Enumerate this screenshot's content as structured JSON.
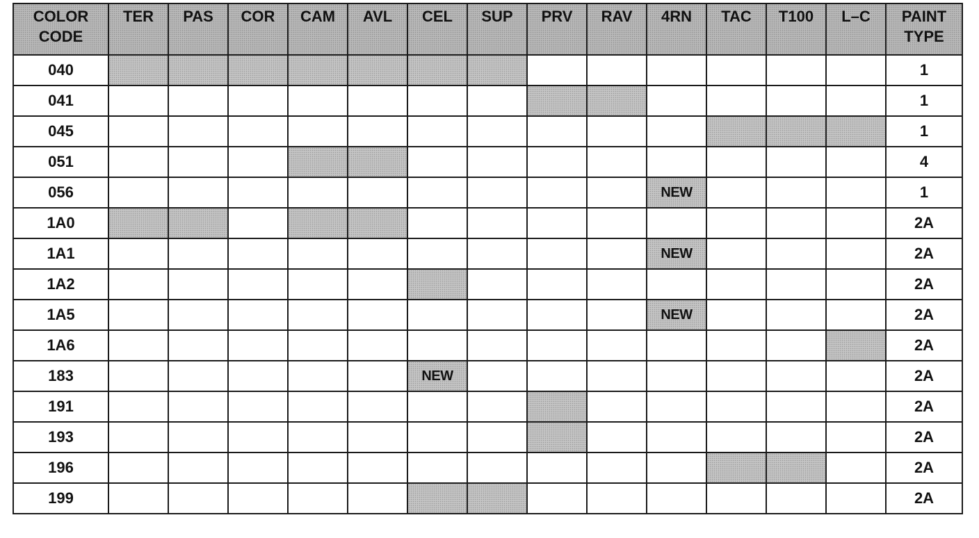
{
  "header": {
    "color_code": [
      "COLOR",
      "CODE"
    ],
    "columns": [
      "TER",
      "PAS",
      "COR",
      "CAM",
      "AVL",
      "CEL",
      "SUP",
      "PRV",
      "RAV",
      "4RN",
      "TAC",
      "T100",
      "L–C"
    ],
    "paint_type": [
      "PAINT",
      "TYPE"
    ]
  },
  "rows": [
    {
      "code": "040",
      "cells": [
        "",
        "",
        "",
        "",
        "",
        "",
        "",
        "",
        "",
        "",
        "",
        "",
        ""
      ],
      "shaded": [
        0,
        1,
        2,
        3,
        4,
        5,
        6
      ],
      "paint_type": "1"
    },
    {
      "code": "041",
      "cells": [
        "",
        "",
        "",
        "",
        "",
        "",
        "",
        "",
        "",
        "",
        "",
        "",
        ""
      ],
      "shaded": [
        7,
        8
      ],
      "paint_type": "1"
    },
    {
      "code": "045",
      "cells": [
        "",
        "",
        "",
        "",
        "",
        "",
        "",
        "",
        "",
        "",
        "",
        "",
        ""
      ],
      "shaded": [
        10,
        11,
        12
      ],
      "paint_type": "1"
    },
    {
      "code": "051",
      "cells": [
        "",
        "",
        "",
        "",
        "",
        "",
        "",
        "",
        "",
        "",
        "",
        "",
        ""
      ],
      "shaded": [
        3,
        4
      ],
      "paint_type": "4"
    },
    {
      "code": "056",
      "cells": [
        "",
        "",
        "",
        "",
        "",
        "",
        "",
        "",
        "",
        "NEW",
        "",
        "",
        ""
      ],
      "shaded": [
        9
      ],
      "paint_type": "1"
    },
    {
      "code": "1A0",
      "cells": [
        "",
        "",
        "",
        "",
        "",
        "",
        "",
        "",
        "",
        "",
        "",
        "",
        ""
      ],
      "shaded": [
        0,
        1,
        3,
        4
      ],
      "paint_type": "2A"
    },
    {
      "code": "1A1",
      "cells": [
        "",
        "",
        "",
        "",
        "",
        "",
        "",
        "",
        "",
        "NEW",
        "",
        "",
        ""
      ],
      "shaded": [
        9
      ],
      "paint_type": "2A"
    },
    {
      "code": "1A2",
      "cells": [
        "",
        "",
        "",
        "",
        "",
        "",
        "",
        "",
        "",
        "",
        "",
        "",
        ""
      ],
      "shaded": [
        5
      ],
      "paint_type": "2A"
    },
    {
      "code": "1A5",
      "cells": [
        "",
        "",
        "",
        "",
        "",
        "",
        "",
        "",
        "",
        "NEW",
        "",
        "",
        ""
      ],
      "shaded": [
        9
      ],
      "paint_type": "2A"
    },
    {
      "code": "1A6",
      "cells": [
        "",
        "",
        "",
        "",
        "",
        "",
        "",
        "",
        "",
        "",
        "",
        "",
        ""
      ],
      "shaded": [
        12
      ],
      "paint_type": "2A"
    },
    {
      "code": "183",
      "cells": [
        "",
        "",
        "",
        "",
        "",
        "NEW",
        "",
        "",
        "",
        "",
        "",
        "",
        ""
      ],
      "shaded": [
        5
      ],
      "paint_type": "2A"
    },
    {
      "code": "191",
      "cells": [
        "",
        "",
        "",
        "",
        "",
        "",
        "",
        "",
        "",
        "",
        "",
        "",
        ""
      ],
      "shaded": [
        7
      ],
      "paint_type": "2A"
    },
    {
      "code": "193",
      "cells": [
        "",
        "",
        "",
        "",
        "",
        "",
        "",
        "",
        "",
        "",
        "",
        "",
        ""
      ],
      "shaded": [
        7
      ],
      "paint_type": "2A"
    },
    {
      "code": "196",
      "cells": [
        "",
        "",
        "",
        "",
        "",
        "",
        "",
        "",
        "",
        "",
        "",
        "",
        ""
      ],
      "shaded": [
        10,
        11
      ],
      "paint_type": "2A"
    },
    {
      "code": "199",
      "cells": [
        "",
        "",
        "",
        "",
        "",
        "",
        "",
        "",
        "",
        "",
        "",
        "",
        ""
      ],
      "shaded": [
        5,
        6
      ],
      "paint_type": "2A"
    }
  ],
  "colors": {
    "shade": "#c4c4c4",
    "header_shade": "#b8b8b8",
    "grid_line": "#1a1a1a",
    "text": "#111111"
  }
}
